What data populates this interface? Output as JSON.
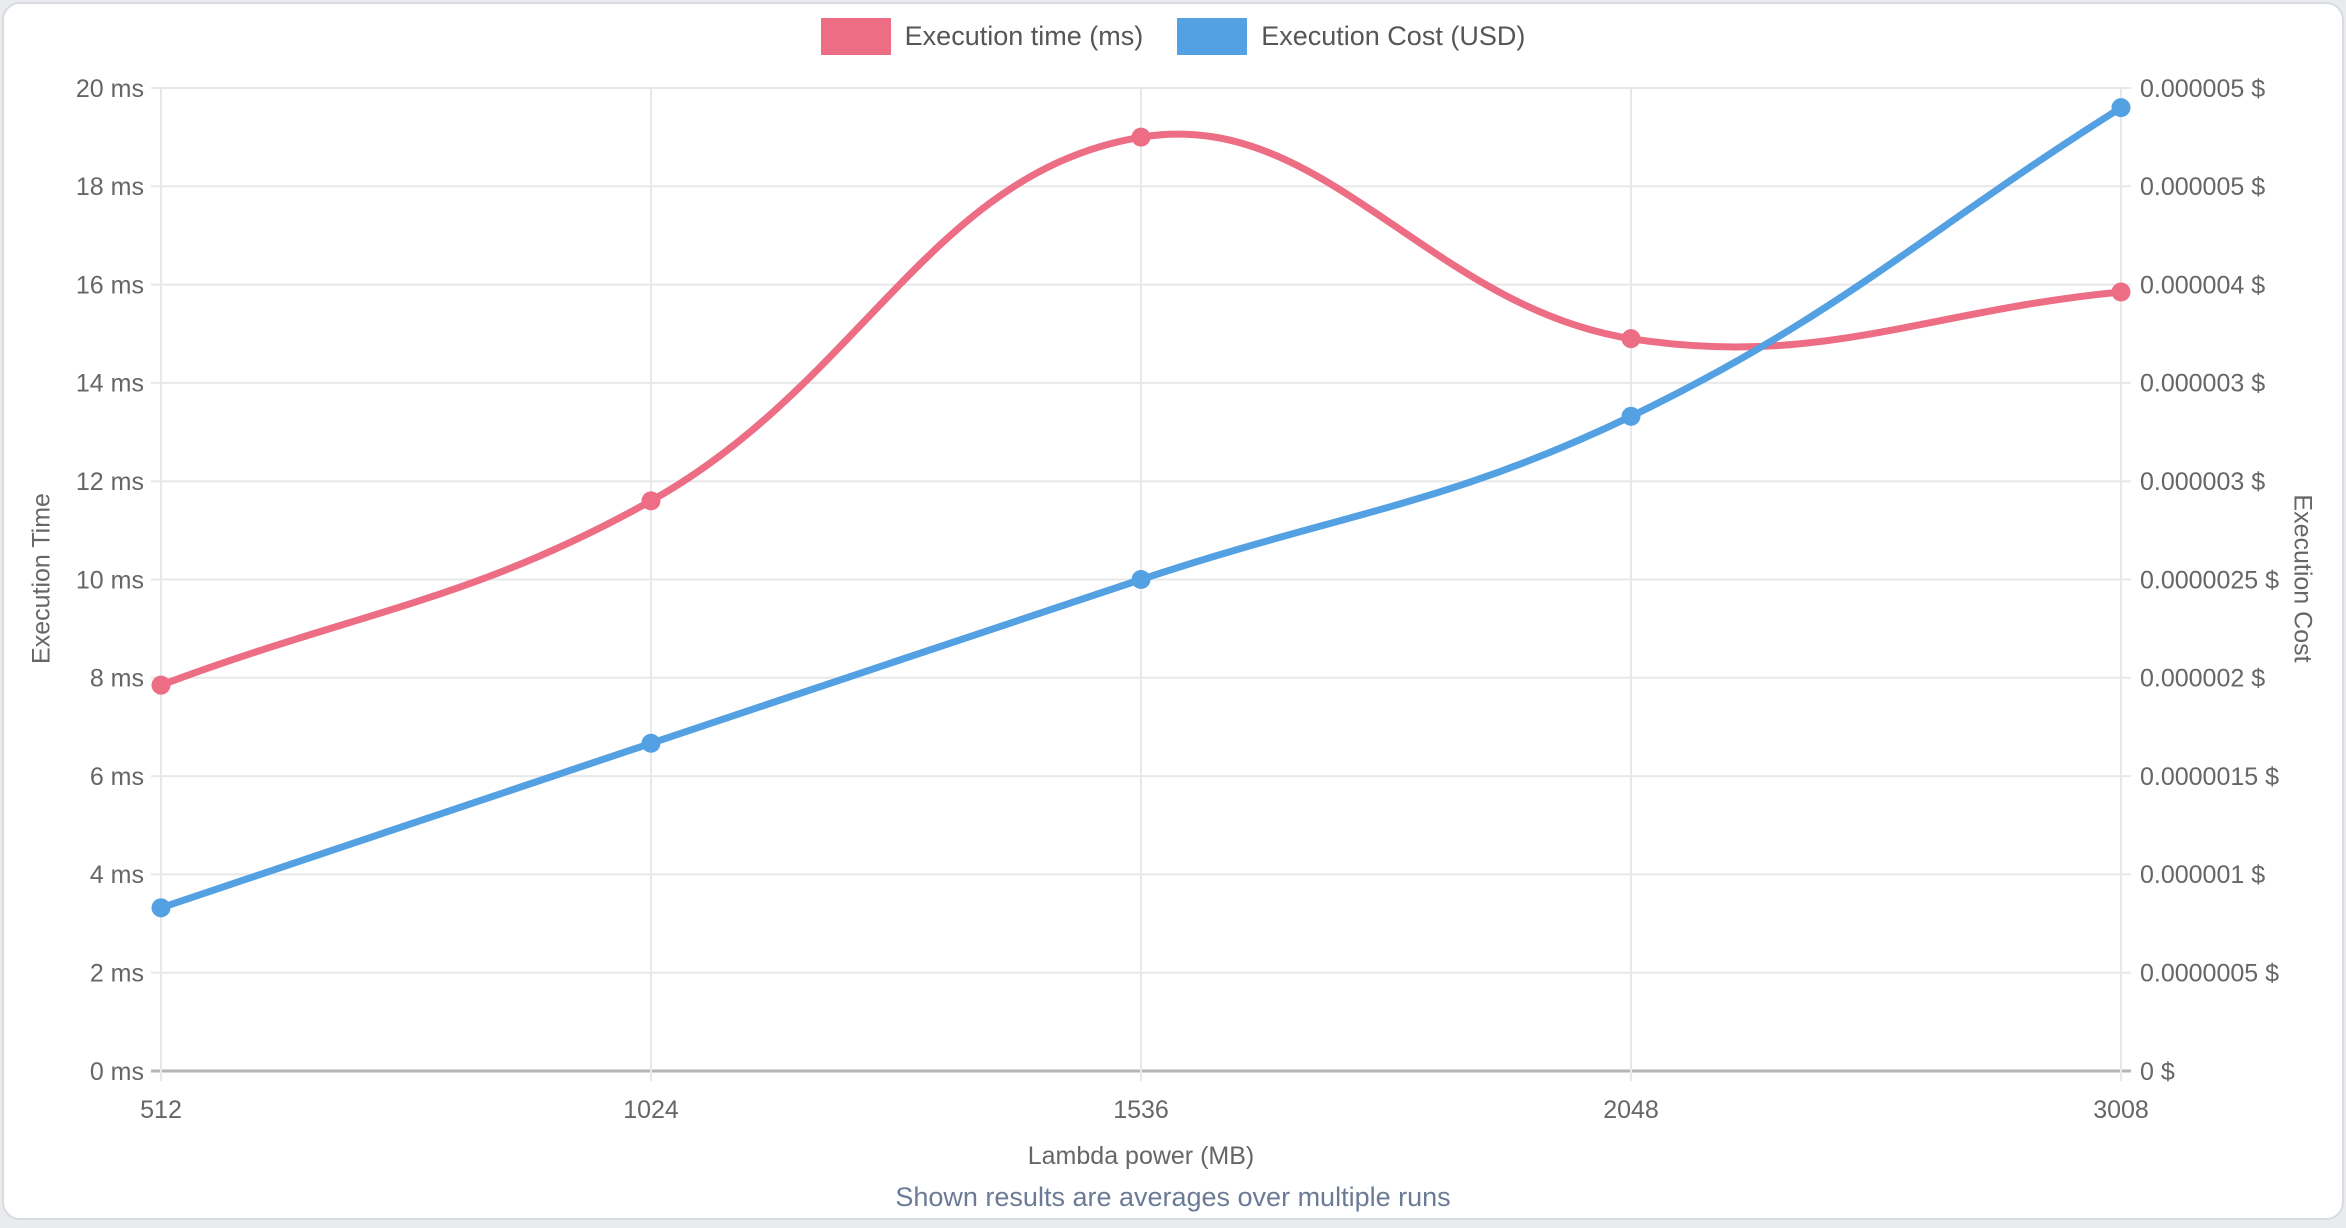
{
  "note": "Shown results are averages over multiple runs",
  "legend": {
    "items": [
      {
        "id": "execution-time",
        "label": "Execution time (ms)",
        "color": "#ec6d84"
      },
      {
        "id": "execution-cost",
        "label": "Execution Cost (USD)",
        "color": "#53a0e2"
      }
    ]
  },
  "chart_data": {
    "type": "line",
    "categories": [
      "512",
      "1024",
      "1536",
      "2048",
      "3008"
    ],
    "xlabel": "Lambda power (MB)",
    "grid": true,
    "legend_position": "top",
    "series": [
      {
        "name": "Execution time (ms)",
        "axis": "left",
        "unit": "ms",
        "color": "#ec6d84",
        "values": [
          7.85,
          11.6,
          19.0,
          14.9,
          15.85
        ]
      },
      {
        "name": "Execution Cost (USD)",
        "axis": "right",
        "unit": "USD",
        "color": "#53a0e2",
        "values": [
          8.3e-07,
          1.667e-06,
          2.5e-06,
          3.33e-06,
          4.9e-06
        ]
      }
    ],
    "left_axis": {
      "title": "Execution Time",
      "min": 0,
      "max": 20,
      "tick_step": 2,
      "tick_labels": [
        "20 ms",
        "18 ms",
        "16 ms",
        "14 ms",
        "12 ms",
        "10 ms",
        "8 ms",
        "6 ms",
        "4 ms",
        "2 ms",
        "0 ms"
      ]
    },
    "right_axis": {
      "title": "Execution Cost",
      "min": 0,
      "max": 5e-06,
      "tick_step": 5e-07,
      "tick_labels": [
        "0.000005 $",
        "0.000005 $",
        "0.000004 $",
        "0.000003 $",
        "0.000003 $",
        "0.0000025 $",
        "0.000002 $",
        "0.0000015 $",
        "0.000001 $",
        "0.0000005 $",
        "0 $"
      ]
    }
  }
}
